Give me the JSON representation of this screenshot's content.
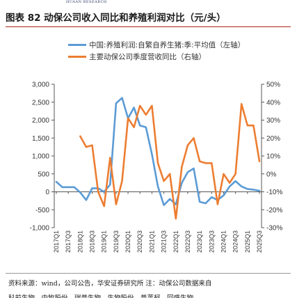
{
  "header": {
    "brand": "HUAAN RESEARCH"
  },
  "figure": {
    "title": "图表 82  动保公司收入同比和养殖利润对比（元/头）"
  },
  "footer": {
    "note": "资料来源：wind，公司公告，华安证券研究所  注：动保公司数据来自",
    "cut_line": "科前生物、中牧股份、瑞普生物、生物股份、普莱柯、回盛生物"
  },
  "colors": {
    "series_left": "#5b9bd5",
    "series_right": "#ed7d31",
    "title_rule": "#b0241c"
  },
  "chart_data": {
    "type": "line",
    "title": "",
    "categories": [
      "2017Q1",
      "2017Q2",
      "2017Q3",
      "2017Q4",
      "2018Q1",
      "2018Q2",
      "2018Q3",
      "2018Q4",
      "2019Q1",
      "2019Q2",
      "2019Q3",
      "2019Q4",
      "2020Q1",
      "2020Q2",
      "2020Q3",
      "2020Q4",
      "2021Q1",
      "2021Q2",
      "2021Q3",
      "2021Q4",
      "2022Q1",
      "2022Q2",
      "2022Q3",
      "2022Q4",
      "2023Q1",
      "2023Q2",
      "2023Q3",
      "2023Q4",
      "2024Q1",
      "2024Q2",
      "2024Q3",
      "2024Q4",
      "2025Q1",
      "2025Q2",
      "2025Q3"
    ],
    "tick_labels": [
      "2017Q1",
      "2017Q3",
      "2018Q1",
      "2018Q3",
      "2019Q1",
      "2019Q3",
      "2020Q1",
      "2020Q3",
      "2021Q1",
      "2021Q3",
      "2022Q1",
      "2022Q3",
      "2023Q1",
      "2023Q3",
      "2024Q1",
      "2024Q3",
      "2025Q1",
      "2025Q3"
    ],
    "y_left": {
      "ylim": [
        -1000,
        3000
      ],
      "ticks": [
        "3,000",
        "2,500",
        "2,000",
        "1,500",
        "1,000",
        "500",
        "0",
        "-500",
        "-1,000"
      ],
      "tick_values": [
        3000,
        2500,
        2000,
        1500,
        1000,
        500,
        0,
        -500,
        -1000
      ]
    },
    "y_right": {
      "ylim": [
        -0.3,
        0.5
      ],
      "ticks": [
        "50%",
        "40%",
        "30%",
        "20%",
        "10%",
        "0%",
        "-10%",
        "-20%",
        "-30%"
      ],
      "tick_values": [
        0.5,
        0.4,
        0.3,
        0.2,
        0.1,
        0.0,
        -0.1,
        -0.2,
        -0.3
      ]
    },
    "series": [
      {
        "name": "中国:养殖利润:自繁自养生猪:季:平均值（左轴）",
        "axis": "left",
        "values": [
          280,
          130,
          130,
          130,
          -20,
          -230,
          100,
          100,
          0,
          200,
          2470,
          2620,
          2050,
          2350,
          1850,
          1800,
          1050,
          150,
          -370,
          -200,
          -350,
          250,
          550,
          650,
          -280,
          -320,
          -150,
          -230,
          -100,
          150,
          300,
          150,
          80,
          60,
          30
        ]
      },
      {
        "name": "主要动保公司季度营收同比（右轴）",
        "axis": "right",
        "values": [
          null,
          null,
          null,
          null,
          0.21,
          0.15,
          0.16,
          -0.1,
          -0.18,
          0.09,
          -0.17,
          -0.04,
          0.31,
          0.26,
          0.38,
          0.33,
          0.38,
          0.06,
          -0.04,
          0.0,
          -0.25,
          0.04,
          0.16,
          0.2,
          0.07,
          0.06,
          0.06,
          -0.17,
          0.0,
          -0.05,
          0.0,
          0.39,
          0.27,
          0.27,
          0.07
        ]
      }
    ]
  }
}
